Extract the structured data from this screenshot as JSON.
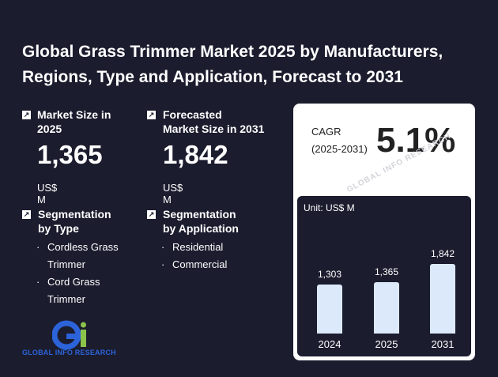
{
  "title": "Global Grass Trimmer Market 2025 by Manufacturers, Regions, Type and Application, Forecast to 2031",
  "market_size": {
    "label_line1": "Market Size in",
    "label_line2": "2025",
    "value": "1,365",
    "unit": "US$ M"
  },
  "forecast": {
    "label_line1": "Forecasted",
    "label_line2": "Market Size in 2031",
    "value": "1,842",
    "unit": "US$ M"
  },
  "seg_type": {
    "label_line1": "Segmentation",
    "label_line2": "by Type",
    "items": [
      "Cordless Grass Trimmer",
      "Cord Grass Trimmer"
    ]
  },
  "seg_app": {
    "label_line1": "Segmentation",
    "label_line2": "by Application",
    "items": [
      "Residential",
      "Commercial"
    ]
  },
  "cagr": {
    "label_line1": "CAGR",
    "label_line2": "(2025-2031)",
    "value": "5.1%"
  },
  "watermark": "GLOBAL INFO RESEARCH",
  "logo": {
    "text": "GLOBAL INFO RESEARCH"
  },
  "chart_data": {
    "type": "bar",
    "title": "Unit: US$ M",
    "categories": [
      "2024",
      "2025",
      "2031"
    ],
    "values": [
      1303,
      1365,
      1842
    ],
    "value_labels": [
      "1,303",
      "1,365",
      "1,842"
    ],
    "ylim": [
      0,
      1842
    ]
  }
}
